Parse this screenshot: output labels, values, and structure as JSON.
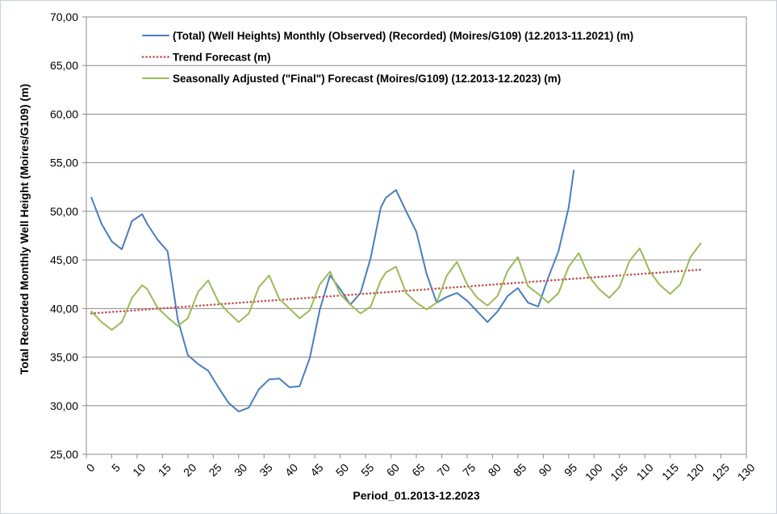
{
  "chart_data": {
    "type": "line",
    "xlabel": "Period_01.2013-12.2023",
    "ylabel": "Total Recorded Monthly Well Height (Moires/G109) (m)",
    "xlim": [
      0,
      130
    ],
    "ylim": [
      25,
      70
    ],
    "x_ticks": [
      "0",
      "5",
      "10",
      "15",
      "20",
      "25",
      "30",
      "35",
      "40",
      "45",
      "50",
      "55",
      "60",
      "65",
      "70",
      "75",
      "80",
      "85",
      "90",
      "95",
      "100",
      "105",
      "110",
      "115",
      "120",
      "125",
      "130"
    ],
    "y_ticks": [
      "25,00",
      "30,00",
      "35,00",
      "40,00",
      "45,00",
      "50,00",
      "55,00",
      "60,00",
      "65,00",
      "70,00"
    ],
    "grid": "horizontal",
    "legend_position": "top",
    "series": [
      {
        "name": "(Total) (Well Heights) Monthly (Observed) (Recorded) (Moires/G109) (12.2013-11.2021) (m)",
        "color": "#4a7ebb",
        "style": "solid",
        "x": [
          1,
          3,
          5,
          7,
          9,
          11,
          12,
          14,
          16,
          18,
          20,
          22,
          24,
          26,
          28,
          30,
          32,
          34,
          36,
          38,
          40,
          42,
          44,
          46,
          48,
          50,
          52,
          54,
          56,
          58,
          59,
          61,
          63,
          65,
          67,
          69,
          71,
          73,
          75,
          77,
          79,
          81,
          83,
          85,
          87,
          89,
          91,
          93,
          95,
          96
        ],
        "y": [
          51.4,
          48.7,
          46.9,
          46.1,
          49.0,
          49.7,
          48.7,
          47.1,
          45.9,
          38.9,
          35.2,
          34.3,
          33.6,
          31.9,
          30.3,
          29.4,
          29.8,
          31.7,
          32.7,
          32.8,
          31.9,
          32.0,
          34.9,
          39.9,
          43.4,
          42.0,
          40.4,
          41.6,
          45.2,
          50.4,
          51.4,
          52.2,
          50.0,
          47.9,
          43.6,
          40.6,
          41.2,
          41.6,
          40.8,
          39.7,
          38.6,
          39.7,
          41.3,
          42.1,
          40.6,
          40.2,
          43.2,
          45.9,
          50.4,
          54.2
        ]
      },
      {
        "name": "Trend Forecast (m)",
        "color": "#c0504d",
        "style": "dotted",
        "x": [
          1,
          121
        ],
        "y": [
          39.5,
          44.0
        ]
      },
      {
        "name": "Seasonally Adjusted (\"Final\") Forecast (Moires/G109) (12.2013-12.2023) (m)",
        "color": "#9bbb59",
        "style": "solid",
        "x": [
          1,
          3,
          5,
          7,
          9,
          11,
          12,
          14,
          16,
          18,
          20,
          22,
          24,
          26,
          28,
          30,
          32,
          34,
          36,
          38,
          40,
          42,
          44,
          46,
          48,
          50,
          52,
          54,
          56,
          58,
          59,
          61,
          63,
          65,
          67,
          69,
          71,
          73,
          75,
          77,
          79,
          81,
          83,
          85,
          87,
          89,
          91,
          93,
          95,
          97,
          99,
          101,
          103,
          105,
          107,
          109,
          111,
          113,
          115,
          117,
          119,
          121
        ],
        "y": [
          39.7,
          38.6,
          37.8,
          38.6,
          41.1,
          42.4,
          42.0,
          40.1,
          39.1,
          38.2,
          39.0,
          41.7,
          42.9,
          40.7,
          39.6,
          38.6,
          39.5,
          42.2,
          43.4,
          41.0,
          40.0,
          39.0,
          39.8,
          42.5,
          43.8,
          41.5,
          40.4,
          39.5,
          40.2,
          42.9,
          43.7,
          44.3,
          41.6,
          40.6,
          39.9,
          40.6,
          43.4,
          44.8,
          42.5,
          41.1,
          40.3,
          41.3,
          43.9,
          45.3,
          42.3,
          41.5,
          40.6,
          41.6,
          44.3,
          45.7,
          43.3,
          42.0,
          41.1,
          42.2,
          44.9,
          46.2,
          43.8,
          42.4,
          41.5,
          42.5,
          45.3,
          46.7
        ]
      }
    ]
  }
}
